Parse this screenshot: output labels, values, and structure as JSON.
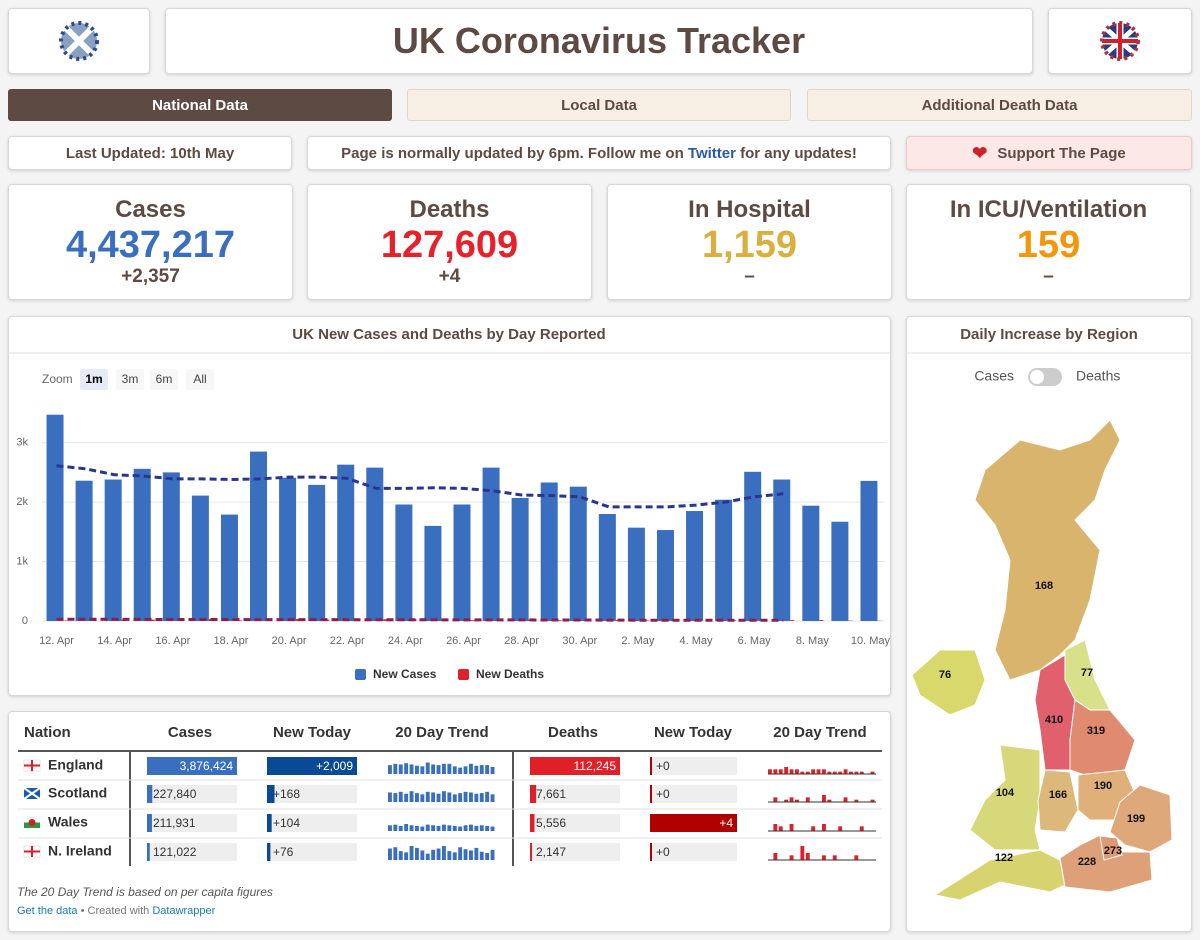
{
  "header": {
    "title": "UK Coronavirus Tracker"
  },
  "tabs": [
    "National Data",
    "Local Data",
    "Additional Death Data"
  ],
  "info": {
    "last_updated": "Last Updated: 10th May",
    "notice_before": "Page is normally updated by 6pm. Follow me on ",
    "notice_link": "Twitter",
    "notice_after": " for any updates!",
    "support": "Support The Page"
  },
  "stats": [
    {
      "title": "Cases",
      "value": "4,437,217",
      "change": "+2,357",
      "color": "#3a6fc0"
    },
    {
      "title": "Deaths",
      "value": "127,609",
      "change": "+4",
      "color": "#e8202a"
    },
    {
      "title": "In Hospital",
      "value": "1,159",
      "change": "–",
      "color": "#d9b040"
    },
    {
      "title": "In ICU/Ventilation",
      "value": "159",
      "change": "–",
      "color": "#f5960a"
    }
  ],
  "chart_data": {
    "type": "bar",
    "title": "UK New Cases and Deaths by Day Reported",
    "zoom_label": "Zoom",
    "zoom_options": [
      "1m",
      "3m",
      "6m",
      "All"
    ],
    "zoom_selected": "1m",
    "categories": [
      "12. Apr",
      null,
      "14. Apr",
      null,
      "16. Apr",
      null,
      "18. Apr",
      null,
      "20. Apr",
      null,
      "22. Apr",
      null,
      "24. Apr",
      null,
      "26. Apr",
      null,
      "28. Apr",
      null,
      "30. Apr",
      null,
      "2. May",
      null,
      "4. May",
      null,
      "6. May",
      null,
      "8. May",
      null,
      "10. May"
    ],
    "series": [
      {
        "name": "New Cases",
        "color": "#3a6fc0",
        "values": [
          3470,
          2360,
          2380,
          2560,
          2500,
          2110,
          1790,
          2850,
          2410,
          2290,
          2630,
          2580,
          1960,
          1600,
          1960,
          2580,
          2070,
          2330,
          2260,
          1800,
          1570,
          1530,
          1850,
          2040,
          2510,
          2380,
          1940,
          1670,
          2357
        ],
        "average": [
          2610,
          2560,
          2460,
          2440,
          2390,
          2390,
          2380,
          2390,
          2420,
          2420,
          2400,
          2230,
          2230,
          2240,
          2230,
          2190,
          2120,
          2110,
          2090,
          1920,
          1920,
          1920,
          1950,
          2000,
          2090,
          2140,
          null,
          null,
          null
        ],
        "average_color": "#2a3590"
      },
      {
        "name": "New Deaths",
        "color": "#e0202a",
        "values": [
          7,
          23,
          20,
          22,
          34,
          32,
          10,
          4,
          33,
          22,
          16,
          29,
          32,
          4,
          13,
          22,
          29,
          11,
          14,
          15,
          9,
          1,
          2,
          11,
          16,
          15,
          17,
          7,
          4
        ],
        "average": [
          30,
          28,
          28,
          27,
          26,
          26,
          25,
          24,
          24,
          24,
          22,
          21,
          21,
          20,
          19,
          18,
          18,
          17,
          16,
          15,
          14,
          13,
          12,
          12,
          11,
          11,
          null,
          null,
          null
        ],
        "average_color": "#8a2050"
      }
    ],
    "ylim": [
      0,
      3600
    ],
    "yticks": [
      0,
      {
        "value": 1000,
        "label": "1k"
      },
      {
        "value": 2000,
        "label": "2k"
      },
      {
        "value": 3000,
        "label": "3k"
      }
    ],
    "grid": true
  },
  "region_map": {
    "title": "Daily Increase by Region",
    "toggle": [
      "Cases",
      "Deaths"
    ],
    "values": [
      168,
      76,
      77,
      410,
      319,
      104,
      166,
      190,
      199,
      122,
      228,
      273
    ],
    "colors": [
      "#d9b46c",
      "#d8d86c",
      "#d8e08a",
      "#e0606e",
      "#e08a70",
      "#d6d87a",
      "#dcb87a",
      "#dfb07a",
      "#dfa87a",
      "#d7d470",
      "#dea078",
      "#de9a70"
    ]
  },
  "table": {
    "headers": [
      "Nation",
      "Cases",
      "New Today",
      "20 Day Trend",
      "Deaths",
      "New Today",
      "20 Day Trend"
    ],
    "rows": [
      {
        "nation": "England",
        "cases": {
          "value": 3876424,
          "label": "3,876,424"
        },
        "new_cases": {
          "value": 2009,
          "label": "+2,009"
        },
        "cases_trend": [
          14,
          16,
          15,
          17,
          15,
          13,
          12,
          18,
          15,
          14,
          16,
          16,
          12,
          10,
          12,
          16,
          13,
          14,
          14,
          11
        ],
        "deaths": {
          "value": 112245,
          "label": "112,245"
        },
        "new_deaths": {
          "value": 0,
          "label": "+0"
        },
        "deaths_trend": [
          2,
          2,
          2,
          3,
          2,
          2,
          1,
          1,
          2,
          2,
          2,
          1,
          1,
          1,
          2,
          1,
          1,
          1,
          0,
          1
        ]
      },
      {
        "nation": "Scotland",
        "cases": {
          "value": 227840,
          "label": "227,840"
        },
        "new_cases": {
          "value": 168,
          "label": "+168"
        },
        "cases_trend": [
          15,
          14,
          16,
          13,
          17,
          14,
          12,
          16,
          15,
          13,
          17,
          15,
          12,
          14,
          16,
          15,
          13,
          14,
          16,
          12
        ],
        "deaths": {
          "value": 7661,
          "label": "7,661"
        },
        "new_deaths": {
          "value": 0,
          "label": "+0"
        },
        "deaths_trend": [
          0,
          2,
          0,
          1,
          2,
          1,
          0,
          2,
          0,
          0,
          3,
          1,
          0,
          0,
          2,
          0,
          1,
          0,
          0,
          1
        ]
      },
      {
        "nation": "Wales",
        "cases": {
          "value": 211931,
          "label": "211,931"
        },
        "new_cases": {
          "value": 104,
          "label": "+104"
        },
        "cases_trend": [
          9,
          10,
          8,
          11,
          9,
          8,
          7,
          10,
          9,
          8,
          10,
          9,
          8,
          7,
          9,
          10,
          8,
          9,
          8,
          7
        ],
        "deaths": {
          "value": 5556,
          "label": "5,556"
        },
        "new_deaths": {
          "value": 4,
          "label": "+4"
        },
        "deaths_trend": [
          0,
          3,
          2,
          0,
          3,
          0,
          0,
          0,
          2,
          0,
          3,
          0,
          0,
          2,
          0,
          0,
          0,
          2,
          0,
          0
        ]
      },
      {
        "nation": "N. Ireland",
        "cases": {
          "value": 121022,
          "label": "121,022"
        },
        "new_cases": {
          "value": 76,
          "label": "+76"
        },
        "cases_trend": [
          18,
          20,
          14,
          12,
          22,
          19,
          15,
          10,
          16,
          18,
          22,
          14,
          12,
          20,
          17,
          15,
          19,
          13,
          11,
          16
        ],
        "deaths": {
          "value": 2147,
          "label": "2,147"
        },
        "new_deaths": {
          "value": 0,
          "label": "+0"
        },
        "deaths_trend": [
          0,
          3,
          0,
          0,
          2,
          0,
          6,
          3,
          0,
          0,
          2,
          0,
          2,
          0,
          0,
          0,
          2,
          0,
          0,
          0
        ]
      }
    ],
    "note": "The 20 Day Trend is based on per capita figures",
    "footer": {
      "link": "Get the data",
      "separator": " • Created with ",
      "credit": "Datawrapper"
    }
  }
}
